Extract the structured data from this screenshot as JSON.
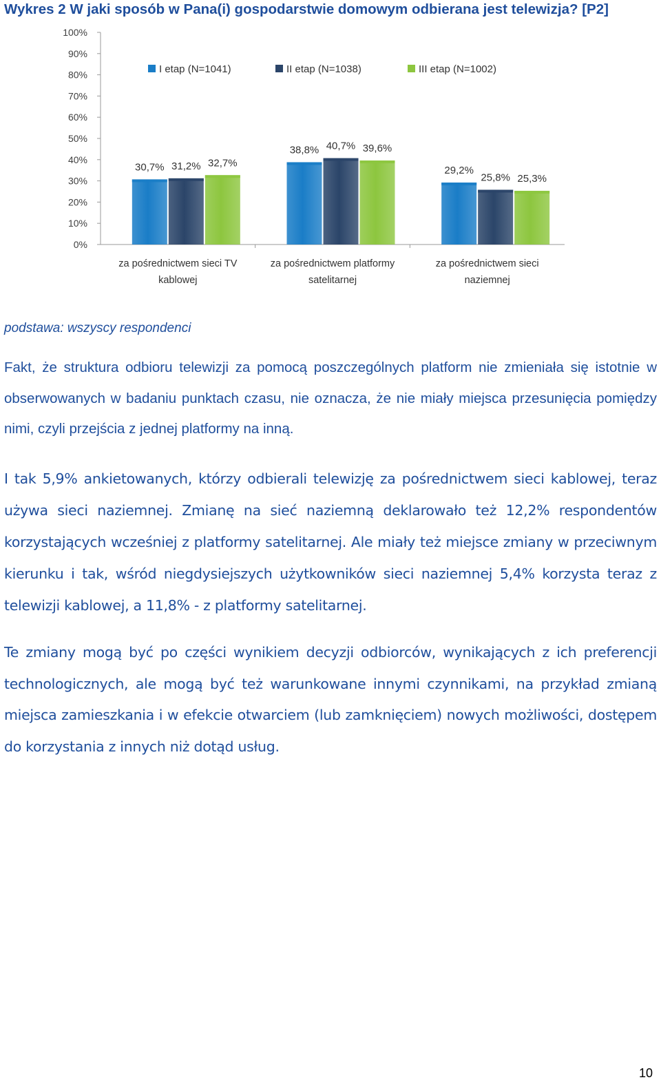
{
  "header": {
    "title": "Wykres 2 W jaki sposób w Pana(i) gospodarstwie domowym odbierana jest telewizja? [P2]"
  },
  "chart_data": {
    "type": "bar",
    "categories": [
      "za pośrednictwem sieci TV kablowej",
      "za pośrednictwem platformy satelitarnej",
      "za pośrednictwem sieci naziemnej"
    ],
    "category_lines": [
      [
        "za pośrednictwem sieci TV",
        "kablowej"
      ],
      [
        "za pośrednictwem platformy",
        "satelitarnej"
      ],
      [
        "za pośrednictwem sieci",
        "naziemnej"
      ]
    ],
    "series": [
      {
        "name": "I etap (N=1041)",
        "color": "#1a7dc7",
        "values": [
          30.7,
          38.8,
          29.2
        ],
        "labels": [
          "30,7%",
          "38,8%",
          "29,2%"
        ]
      },
      {
        "name": "II etap (N=1038)",
        "color": "#2b4569",
        "values": [
          31.2,
          40.7,
          25.8
        ],
        "labels": [
          "31,2%",
          "40,7%",
          "25,8%"
        ]
      },
      {
        "name": "III etap (N=1002)",
        "color": "#8dc63f",
        "values": [
          32.7,
          39.6,
          25.3
        ],
        "labels": [
          "32,7%",
          "39,6%",
          "25,3%"
        ]
      }
    ],
    "ylim": [
      0,
      100
    ],
    "yticks": [
      "0%",
      "10%",
      "20%",
      "30%",
      "40%",
      "50%",
      "60%",
      "70%",
      "80%",
      "90%",
      "100%"
    ],
    "legend_position": "top",
    "grid": false
  },
  "caption": "podstawa: wszyscy respondenci",
  "paragraphs": [
    "Fakt, że struktura odbioru telewizji za pomocą poszczególnych platform nie zmieniała się istotnie w obserwowanych w badaniu punktach czasu, nie oznacza, że nie miały miejsca przesunięcia pomiędzy nimi, czyli przejścia z jednej platformy na inną.",
    "I tak 5,9% ankietowanych, którzy odbierali telewizję za pośrednictwem sieci kablowej, teraz używa sieci naziemnej. Zmianę na sieć naziemną deklarowało też 12,2% respondentów korzystających wcześniej z platformy satelitarnej. Ale miały też miejsce zmiany w przeciwnym kierunku i tak, wśród niegdysiejszych użytkowników sieci naziemnej 5,4% korzysta teraz z telewizji kablowej, a 11,8% - z platformy satelitarnej.",
    "Te zmiany mogą być po części wynikiem decyzji odbiorców, wynikających z ich preferencji technologicznych, ale mogą być też warunkowane innymi czynnikami, na przykład zmianą miejsca zamieszkania i w efekcie otwarciem (lub zamknięciem) nowych możliwości, dostępem do korzystania z innych niż dotąd usług."
  ],
  "footer": {
    "page_number": "10"
  }
}
